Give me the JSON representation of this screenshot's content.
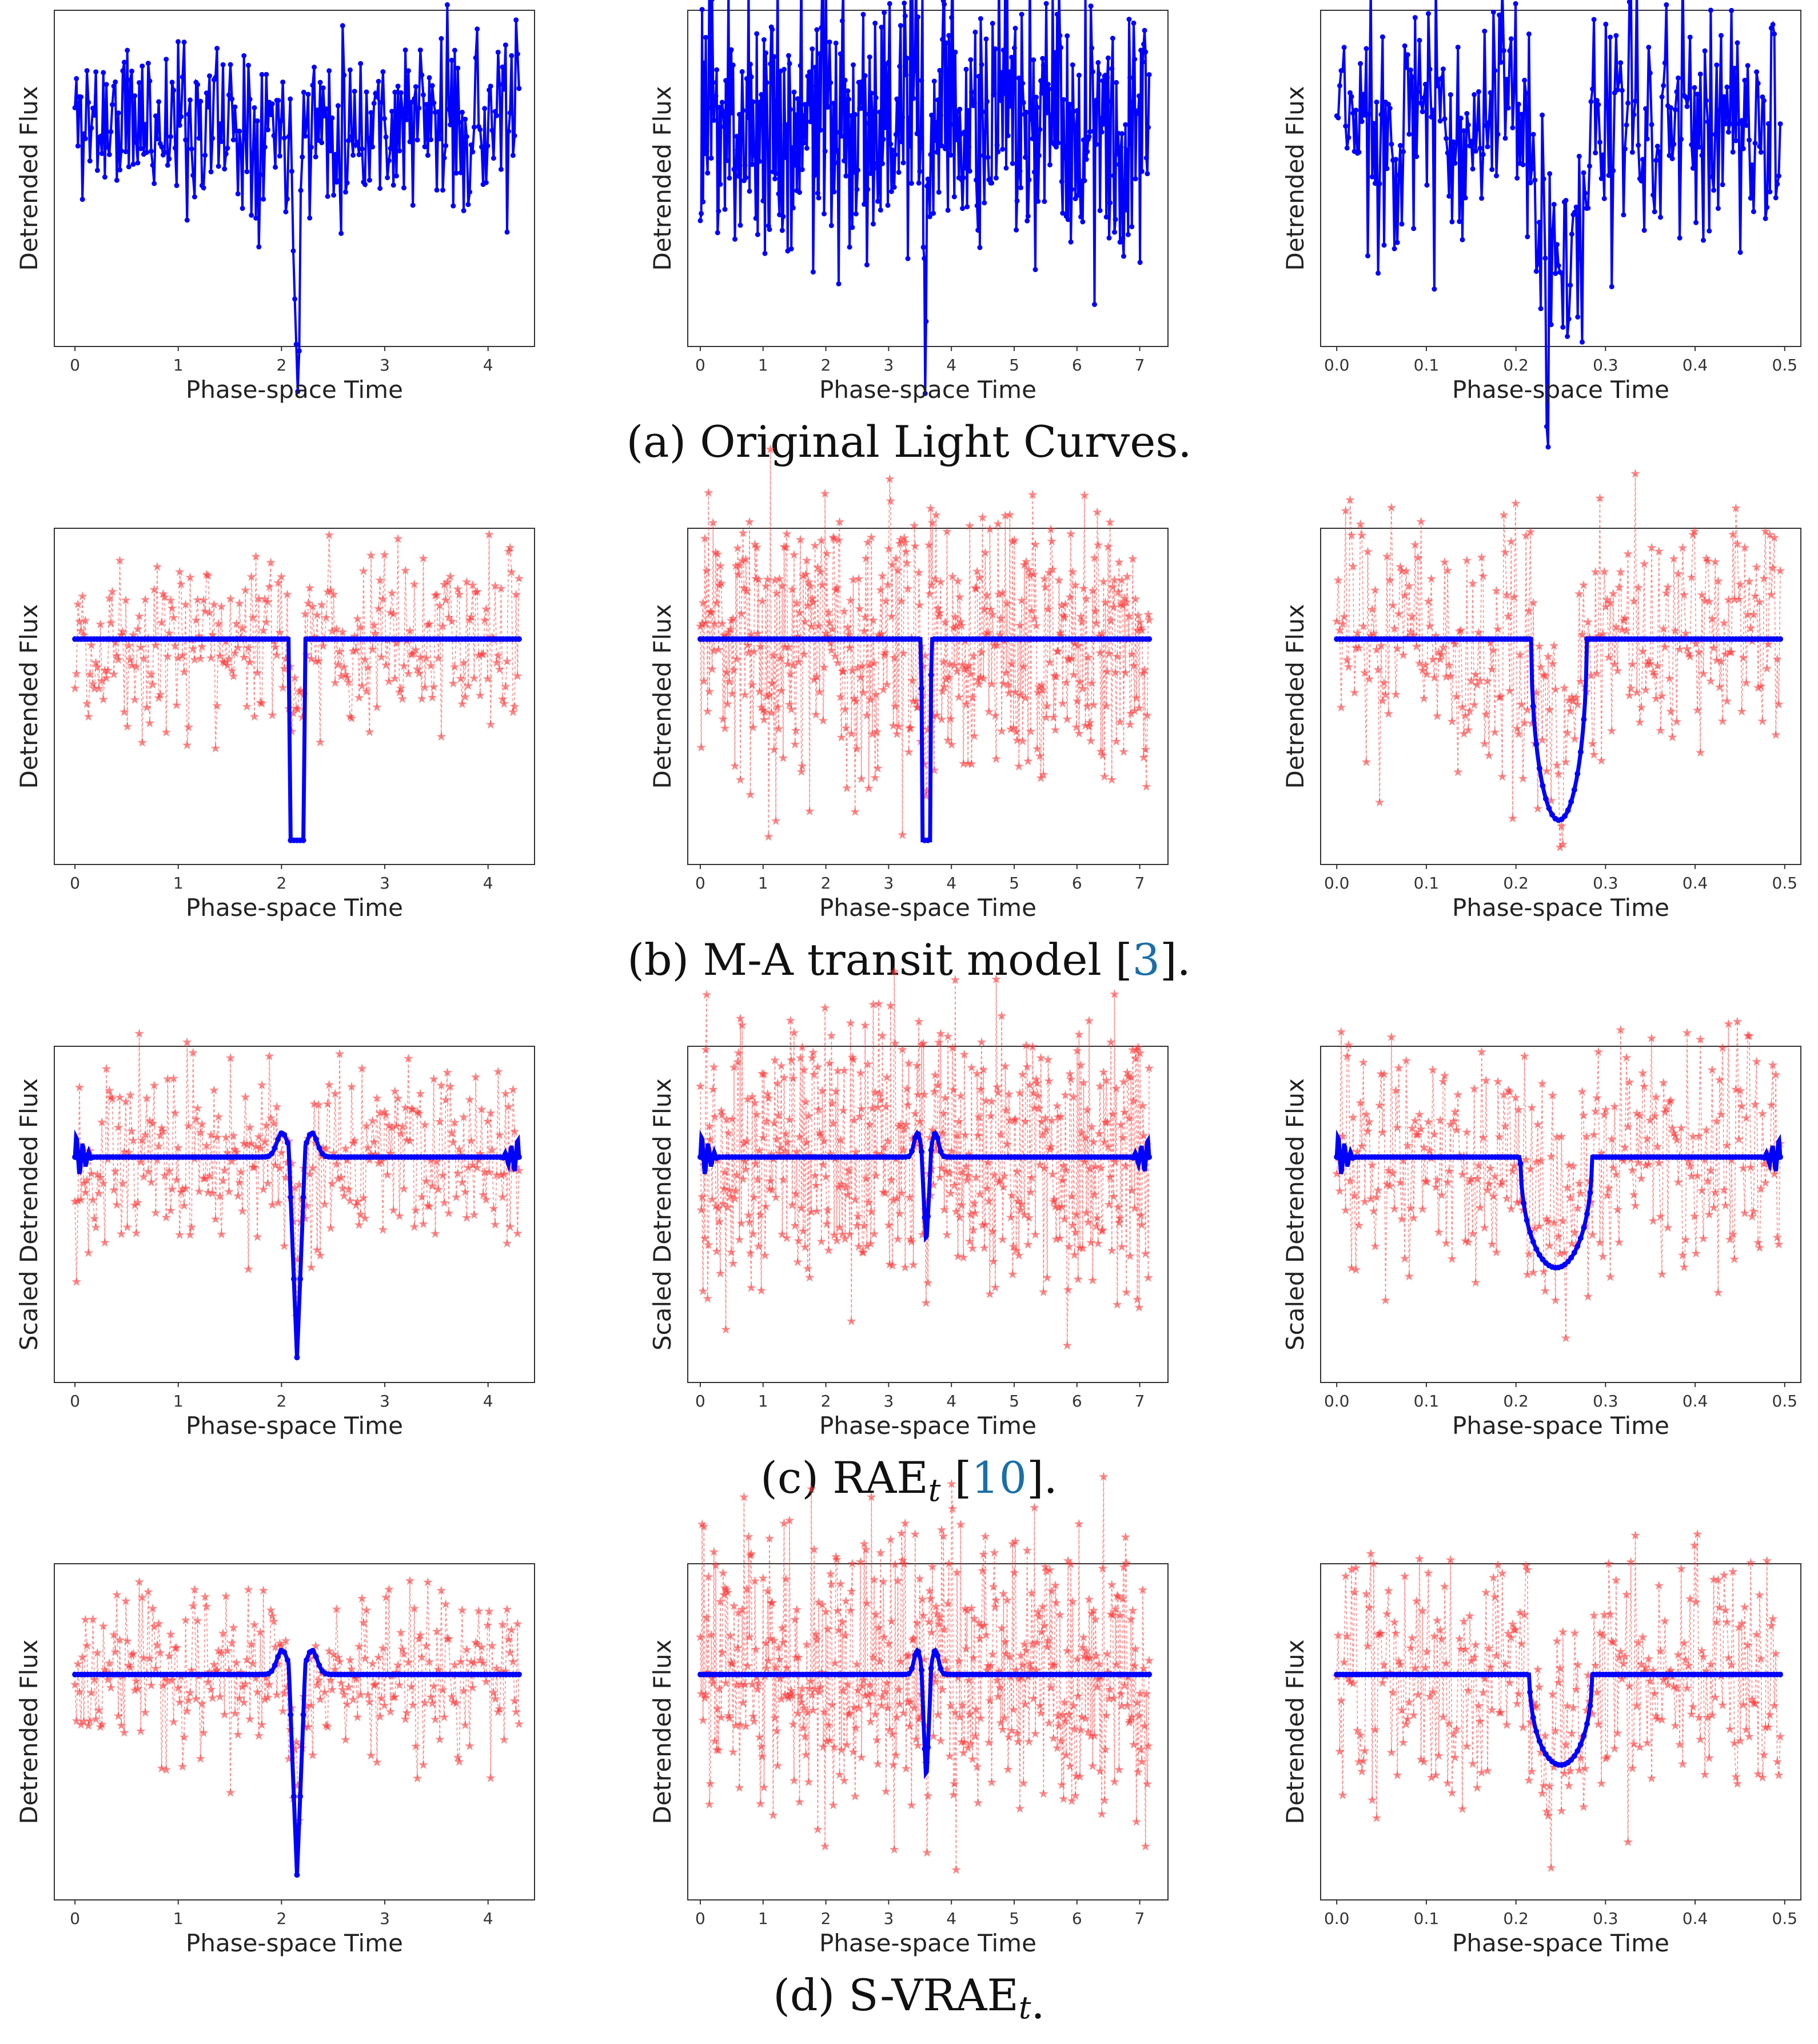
{
  "colors": {
    "observed": "#ff3333",
    "model": "#0000ff",
    "cite": "#1a6fa8"
  },
  "chart_data": [
    {
      "caption": {
        "pre": "(a) Original Light Curves.",
        "sub": "",
        "cite": "",
        "post": ""
      },
      "ylabel": "Detrended Flux",
      "xlabel": "Phase-space Time",
      "style": "observed_only",
      "panels": [
        {
          "type": "line",
          "xlim": [
            -0.2,
            4.45
          ],
          "xticks": [
            "0",
            "1",
            "2",
            "3",
            "4"
          ],
          "xtick_values": [
            0,
            1,
            2,
            3,
            4
          ],
          "xmax": 4.3,
          "transit_center": 2.15,
          "transit_halfwidth": 0.07,
          "shape": "v",
          "depth": 1.0,
          "noise": 0.22,
          "seed": 11
        },
        {
          "type": "line",
          "xlim": [
            -0.2,
            7.45
          ],
          "xticks": [
            "0",
            "1",
            "2",
            "3",
            "4",
            "5",
            "6",
            "7"
          ],
          "xtick_values": [
            0,
            1,
            2,
            3,
            4,
            5,
            6,
            7
          ],
          "xmax": 7.15,
          "transit_center": 3.6,
          "transit_halfwidth": 0.06,
          "shape": "v",
          "depth": 1.0,
          "noise": 0.35,
          "seed": 23
        },
        {
          "type": "line",
          "xlim": [
            -0.018,
            0.518
          ],
          "xticks": [
            "0.0",
            "0.1",
            "0.2",
            "0.3",
            "0.4",
            "0.5"
          ],
          "xtick_values": [
            0.0,
            0.1,
            0.2,
            0.3,
            0.4,
            0.5
          ],
          "xmax": 0.495,
          "transit_center": 0.25,
          "transit_halfwidth": 0.035,
          "shape": "u",
          "depth": 0.85,
          "noise": 0.32,
          "seed": 37
        }
      ]
    },
    {
      "caption": {
        "pre": "(b) M-A transit model [",
        "sub": "",
        "cite": "3",
        "post": "]."
      },
      "ylabel": "Detrended Flux",
      "xlabel": "Phase-space Time",
      "style": "ma_fit",
      "panels": [
        {
          "type": "line",
          "xlim": [
            -0.2,
            4.45
          ],
          "xticks": [
            "0",
            "1",
            "2",
            "3",
            "4"
          ],
          "xtick_values": [
            0,
            1,
            2,
            3,
            4
          ],
          "xmax": 4.3,
          "transit_center": 2.15,
          "transit_halfwidth": 0.08,
          "shape": "box",
          "depth": 1.0,
          "noise": 0.22,
          "seed": 12
        },
        {
          "type": "line",
          "xlim": [
            -0.2,
            7.45
          ],
          "xticks": [
            "0",
            "1",
            "2",
            "3",
            "4",
            "5",
            "6",
            "7"
          ],
          "xtick_values": [
            0,
            1,
            2,
            3,
            4,
            5,
            6,
            7
          ],
          "xmax": 7.15,
          "transit_center": 3.6,
          "transit_halfwidth": 0.08,
          "shape": "box",
          "depth": 1.0,
          "noise": 0.35,
          "seed": 24
        },
        {
          "type": "line",
          "xlim": [
            -0.018,
            0.518
          ],
          "xticks": [
            "0.0",
            "0.1",
            "0.2",
            "0.3",
            "0.4",
            "0.5"
          ],
          "xtick_values": [
            0.0,
            0.1,
            0.2,
            0.3,
            0.4,
            0.5
          ],
          "xmax": 0.495,
          "transit_center": 0.248,
          "transit_halfwidth": 0.031,
          "shape": "u",
          "depth": 0.9,
          "noise": 0.32,
          "seed": 38
        }
      ]
    },
    {
      "caption": {
        "pre": "(c) RAE",
        "sub": "t",
        "cite": "10",
        "post": "]."
      },
      "ylabel": "Scaled Detrended Flux",
      "xlabel": "Phase-space Time",
      "style": "rae_fit",
      "panels": [
        {
          "type": "line",
          "xlim": [
            -0.2,
            4.45
          ],
          "xticks": [
            "0",
            "1",
            "2",
            "3",
            "4"
          ],
          "xtick_values": [
            0,
            1,
            2,
            3,
            4
          ],
          "xmax": 4.3,
          "transit_center": 2.15,
          "transit_halfwidth": 0.08,
          "shape": "v",
          "depth": 1.0,
          "noise": 0.22,
          "seed": 13
        },
        {
          "type": "line",
          "xlim": [
            -0.2,
            7.45
          ],
          "xticks": [
            "0",
            "1",
            "2",
            "3",
            "4",
            "5",
            "6",
            "7"
          ],
          "xtick_values": [
            0,
            1,
            2,
            3,
            4,
            5,
            6,
            7
          ],
          "xmax": 7.15,
          "transit_center": 3.6,
          "transit_halfwidth": 0.08,
          "shape": "v",
          "depth": 0.45,
          "noise": 0.35,
          "seed": 25
        },
        {
          "type": "line",
          "xlim": [
            -0.018,
            0.518
          ],
          "xticks": [
            "0.0",
            "0.1",
            "0.2",
            "0.3",
            "0.4",
            "0.5"
          ],
          "xtick_values": [
            0.0,
            0.1,
            0.2,
            0.3,
            0.4,
            0.5
          ],
          "xmax": 0.495,
          "transit_center": 0.245,
          "transit_halfwidth": 0.04,
          "shape": "u",
          "depth": 0.55,
          "noise": 0.32,
          "seed": 39
        }
      ]
    },
    {
      "caption": {
        "pre": "(d) S-VRAE",
        "sub": "t",
        "cite": "",
        "post": "."
      },
      "ylabel": "Detrended Flux",
      "xlabel": "Phase-space Time",
      "style": "svrae_fit",
      "panels": [
        {
          "type": "line",
          "xlim": [
            -0.2,
            4.45
          ],
          "xticks": [
            "0",
            "1",
            "2",
            "3",
            "4"
          ],
          "xtick_values": [
            0,
            1,
            2,
            3,
            4
          ],
          "xmax": 4.3,
          "transit_center": 2.15,
          "transit_halfwidth": 0.08,
          "shape": "v",
          "depth": 1.0,
          "noise": 0.22,
          "seed": 14
        },
        {
          "type": "line",
          "xlim": [
            -0.2,
            7.45
          ],
          "xticks": [
            "0",
            "1",
            "2",
            "3",
            "4",
            "5",
            "6",
            "7"
          ],
          "xtick_values": [
            0,
            1,
            2,
            3,
            4,
            5,
            6,
            7
          ],
          "xmax": 7.15,
          "transit_center": 3.6,
          "transit_halfwidth": 0.08,
          "shape": "v",
          "depth": 0.55,
          "noise": 0.35,
          "seed": 26
        },
        {
          "type": "line",
          "xlim": [
            -0.018,
            0.518
          ],
          "xticks": [
            "0.0",
            "0.1",
            "0.2",
            "0.3",
            "0.4",
            "0.5"
          ],
          "xtick_values": [
            0.0,
            0.1,
            0.2,
            0.3,
            0.4,
            0.5
          ],
          "xmax": 0.495,
          "transit_center": 0.25,
          "transit_halfwidth": 0.035,
          "shape": "u",
          "depth": 0.45,
          "noise": 0.32,
          "seed": 40
        }
      ]
    }
  ]
}
